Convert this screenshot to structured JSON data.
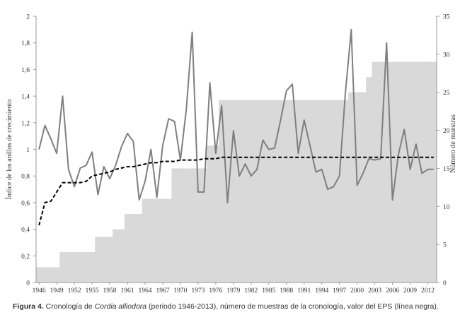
{
  "chart_data": {
    "type": "line",
    "x": [
      1946,
      1947,
      1948,
      1949,
      1950,
      1951,
      1952,
      1953,
      1954,
      1955,
      1956,
      1957,
      1958,
      1959,
      1960,
      1961,
      1962,
      1963,
      1964,
      1965,
      1966,
      1967,
      1968,
      1969,
      1970,
      1971,
      1972,
      1973,
      1974,
      1975,
      1976,
      1977,
      1978,
      1979,
      1980,
      1981,
      1982,
      1983,
      1984,
      1985,
      1986,
      1987,
      1988,
      1989,
      1990,
      1991,
      1992,
      1993,
      1994,
      1995,
      1996,
      1997,
      1998,
      1999,
      2000,
      2001,
      2002,
      2003,
      2004,
      2005,
      2006,
      2007,
      2008,
      2009,
      2010,
      2011,
      2012,
      2013
    ],
    "x_ticks": [
      "1946",
      "1949",
      "1952",
      "1955",
      "1958",
      "1961",
      "1964",
      "1967",
      "1970",
      "1973",
      "1976",
      "1979",
      "1982",
      "1985",
      "1988",
      "1991",
      "1994",
      "1997",
      "2000",
      "2003",
      "2006",
      "2009",
      "2012"
    ],
    "x_tick_labels": [
      "1946",
      "1949",
      "1952",
      "1955",
      "1958",
      "1961",
      "1964",
      "1967",
      "1970",
      "1973",
      "1976",
      "1979",
      "1982",
      "1985",
      "1988",
      "1991",
      "1994",
      "1997",
      "2000",
      "2003",
      "2006",
      "2009",
      "2012"
    ],
    "y_left": {
      "label": "Índice de los anillos de crecimiento",
      "ylim": [
        0,
        2
      ],
      "ticks": [
        "0",
        "0,2",
        "0,4",
        "0,6",
        "0,8",
        "1",
        "1,2",
        "1,4",
        "1,6",
        "1,8",
        "2"
      ]
    },
    "y_right": {
      "label": "Número de muestras",
      "ylim": [
        0,
        35
      ],
      "ticks": [
        "0",
        "5",
        "10",
        "15",
        "20",
        "25",
        "30",
        "35"
      ]
    },
    "series": [
      {
        "key": "index",
        "axis": "left",
        "style": "solid-gray",
        "values": [
          1.0,
          1.18,
          1.08,
          0.97,
          1.4,
          0.85,
          0.72,
          0.86,
          0.88,
          0.98,
          0.66,
          0.87,
          0.78,
          0.88,
          1.02,
          1.12,
          1.06,
          0.62,
          0.76,
          1.0,
          0.64,
          1.03,
          1.23,
          1.21,
          0.92,
          1.3,
          1.88,
          0.68,
          0.68,
          1.5,
          0.97,
          1.33,
          0.6,
          1.14,
          0.8,
          0.89,
          0.8,
          0.85,
          1.07,
          1.0,
          1.01,
          1.22,
          1.44,
          1.49,
          0.97,
          1.22,
          1.03,
          0.83,
          0.85,
          0.7,
          0.72,
          0.8,
          1.42,
          1.9,
          0.73,
          0.82,
          0.93,
          0.92,
          0.93,
          1.8,
          0.62,
          0.96,
          1.15,
          0.85,
          1.04,
          0.82,
          0.85,
          0.85
        ]
      },
      {
        "key": "eps",
        "axis": "left",
        "style": "dashed-black",
        "values": [
          0.43,
          0.6,
          0.61,
          0.68,
          0.75,
          0.75,
          0.75,
          0.75,
          0.76,
          0.8,
          0.81,
          0.82,
          0.83,
          0.85,
          0.86,
          0.87,
          0.87,
          0.88,
          0.89,
          0.9,
          0.9,
          0.91,
          0.91,
          0.91,
          0.92,
          0.92,
          0.92,
          0.92,
          0.93,
          0.93,
          0.93,
          0.94,
          0.94,
          0.94,
          0.94,
          0.94,
          0.94,
          0.94,
          0.94,
          0.94,
          0.94,
          0.94,
          0.94,
          0.94,
          0.94,
          0.94,
          0.94,
          0.94,
          0.94,
          0.94,
          0.94,
          0.94,
          0.94,
          0.94,
          0.94,
          0.94,
          0.94,
          0.94,
          0.94,
          0.94,
          0.94,
          0.94,
          0.94,
          0.94,
          0.94,
          0.94,
          0.94,
          0.94
        ]
      },
      {
        "key": "samples",
        "axis": "right",
        "style": "area-lightgray",
        "values": [
          2,
          2,
          2,
          2,
          4,
          4,
          4,
          4,
          4,
          4,
          6,
          6,
          6,
          7,
          7,
          9,
          9,
          9,
          11,
          11,
          11,
          11,
          11,
          15,
          15,
          15,
          15,
          15,
          15,
          18,
          18,
          24,
          24,
          24,
          24,
          24,
          24,
          24,
          24,
          24,
          24,
          24,
          24,
          24,
          24,
          24,
          24,
          24,
          24,
          24,
          24,
          24,
          24,
          25,
          25,
          25,
          27,
          29,
          29,
          29,
          29,
          29,
          29,
          29,
          29,
          29,
          29,
          29
        ]
      }
    ]
  },
  "caption": {
    "prefix": "Figura 4.",
    "text1": " Cronología de ",
    "species": "Cordia alliodora",
    "text2": " (periodo 1946-2013), número de muestras de la cronología, valor del EPS  (línea negra)."
  },
  "colors": {
    "area": "#d9d9d9",
    "index_line": "#7f7f7f",
    "eps_line": "#000000",
    "axis": "#999999"
  }
}
